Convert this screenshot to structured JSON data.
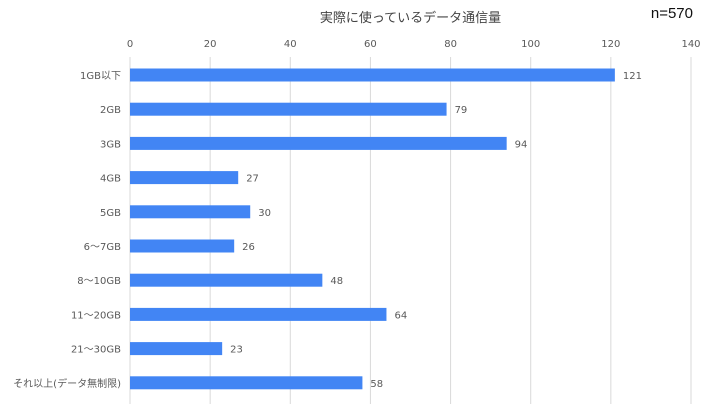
{
  "chart_data": {
    "type": "bar",
    "orientation": "horizontal",
    "title": "実際に使っているデータ通信量",
    "annotation": "n=570",
    "categories": [
      "1GB以下",
      "2GB",
      "3GB",
      "4GB",
      "5GB",
      "6～7GB",
      "8～10GB",
      "11～20GB",
      "21～30GB",
      "それ以上(データ無制限)"
    ],
    "values": [
      121,
      79,
      94,
      27,
      30,
      26,
      48,
      64,
      23,
      58
    ],
    "xlim": [
      0,
      140
    ],
    "xticks": [
      0,
      20,
      40,
      60,
      80,
      100,
      120,
      140
    ],
    "x_axis_position": "top",
    "grid": true,
    "legend": "none",
    "bar_color": "#4285f4",
    "grid_color": "#d9d9d9",
    "label_color": "#595959"
  }
}
